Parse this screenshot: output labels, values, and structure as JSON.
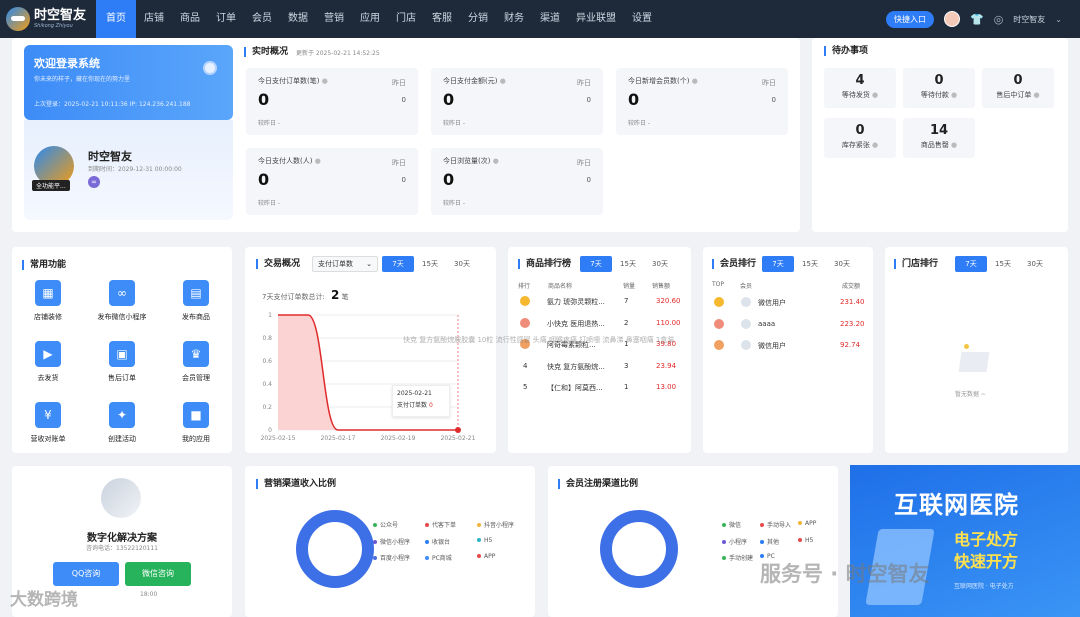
{
  "brand": {
    "name_cn": "时空智友",
    "name_en": "Shikong Zhiyou"
  },
  "nav": [
    "首页",
    "店铺",
    "商品",
    "订单",
    "会员",
    "数据",
    "营销",
    "应用",
    "门店",
    "客服",
    "分销",
    "财务",
    "渠道",
    "异业联盟",
    "设置"
  ],
  "nav_active": 0,
  "header": {
    "quick_entry": "快捷入口",
    "user": "时空智友",
    "accent": "#2e7cf6",
    "bar_color": "#1e2a3a"
  },
  "welcome": {
    "title": "欢迎登录系统",
    "subtitle": "你未来的样子，藏在你现在的努力里",
    "last_login": "上次登录：2025-02-21 10:11:36 IP: 124.236.241.188"
  },
  "shop": {
    "name": "时空智友",
    "tag": "全功能平...",
    "expire": "到期时间：2029-12-31 00:00:00"
  },
  "realtime": {
    "title": "实时概况",
    "updated": "更新于 2025-02-21 14:52:25",
    "cards": [
      {
        "label": "今日支付订单数(笔)",
        "value": "0",
        "yday_label": "昨日",
        "yday": "0",
        "cmp": "较昨日 -"
      },
      {
        "label": "今日支付金额(元)",
        "value": "0",
        "yday_label": "昨日",
        "yday": "0",
        "cmp": "较昨日 -"
      },
      {
        "label": "今日新增会员数(个)",
        "value": "0",
        "yday_label": "昨日",
        "yday": "0",
        "cmp": "较昨日 -"
      },
      {
        "label": "今日支付人数(人)",
        "value": "0",
        "yday_label": "昨日",
        "yday": "0",
        "cmp": "较昨日 -"
      },
      {
        "label": "今日浏览量(次)",
        "value": "0",
        "yday_label": "昨日",
        "yday": "0",
        "cmp": "较昨日 -"
      }
    ]
  },
  "todo": {
    "title": "待办事项",
    "items": [
      {
        "value": "4",
        "label": "等待发货"
      },
      {
        "value": "0",
        "label": "等待付款"
      },
      {
        "value": "0",
        "label": "售后中订单"
      },
      {
        "value": "0",
        "label": "库存紧张"
      },
      {
        "value": "14",
        "label": "商品售罄"
      }
    ]
  },
  "functions": {
    "title": "常用功能",
    "items": [
      {
        "label": "店铺装修",
        "icon": "brush-icon",
        "glyph": "▦"
      },
      {
        "label": "发布微信小程序",
        "icon": "mini-program-icon",
        "glyph": "∞"
      },
      {
        "label": "发布商品",
        "icon": "product-icon",
        "glyph": "▤"
      },
      {
        "label": "去发货",
        "icon": "truck-icon",
        "glyph": "▶"
      },
      {
        "label": "售后订单",
        "icon": "after-sale-icon",
        "glyph": "▣"
      },
      {
        "label": "会员管理",
        "icon": "crown-icon",
        "glyph": "♛"
      },
      {
        "label": "营收对账单",
        "icon": "yen-icon",
        "glyph": "¥"
      },
      {
        "label": "创建活动",
        "icon": "ticket-icon",
        "glyph": "✦"
      },
      {
        "label": "我的应用",
        "icon": "cube-icon",
        "glyph": "■"
      }
    ]
  },
  "trade": {
    "title": "交易概况",
    "select": "支付订单数",
    "tabs": [
      "7天",
      "15天",
      "30天"
    ],
    "summary_label": "7天支付订单数总计:",
    "summary_value": "2",
    "summary_unit": "笔",
    "tooltip_date": "2025-02-21",
    "tooltip_label": "支付订单数",
    "tooltip_value": "0"
  },
  "chart_data": {
    "type": "area",
    "x": [
      "2025-02-15",
      "2025-02-16",
      "2025-02-17",
      "2025-02-18",
      "2025-02-19",
      "2025-02-20",
      "2025-02-21"
    ],
    "xticks": [
      "2025-02-15",
      "2025-02-17",
      "2025-02-19",
      "2025-02-21"
    ],
    "yticks": [
      "1",
      "0.8",
      "0.6",
      "0.4",
      "0.2",
      "0"
    ],
    "series": [
      {
        "values": [
          1,
          1,
          0,
          0,
          0,
          0,
          0
        ]
      }
    ],
    "ylim": [
      0,
      1
    ],
    "color": "#e02b2b",
    "fill": "#fbd3d3"
  },
  "product_rank": {
    "title": "商品排行榜",
    "tabs": [
      "7天",
      "15天",
      "30天"
    ],
    "headers": [
      "排行",
      "商品名称",
      "销量",
      "销售额"
    ],
    "rows": [
      {
        "rank": "1",
        "name": "氨力 琥弥灵颗粒...",
        "qty": "7",
        "amount": "320.60"
      },
      {
        "rank": "2",
        "name": "小快克 医用退热...",
        "qty": "2",
        "amount": "110.00"
      },
      {
        "rank": "3",
        "name": "阿奇霉素颗粒...",
        "qty": "1",
        "amount": "39.80"
      },
      {
        "rank": "4",
        "name": "快克 复方氨酚烷...",
        "qty": "3",
        "amount": "23.94"
      },
      {
        "rank": "5",
        "name": "【仁和】阿莫西...",
        "qty": "1",
        "amount": "13.00"
      }
    ]
  },
  "member_rank": {
    "title": "会员排行",
    "tabs": [
      "7天",
      "15天",
      "30天"
    ],
    "headers": [
      "TOP",
      "会员",
      "成交额"
    ],
    "rows": [
      {
        "name": "微信用户",
        "amount": "231.40"
      },
      {
        "name": "aaaa",
        "amount": "223.20"
      },
      {
        "name": "微信用户",
        "amount": "92.74"
      }
    ]
  },
  "store_rank": {
    "title": "门店排行",
    "tabs": [
      "7天",
      "15天",
      "30天"
    ],
    "empty": "暂无数据 ~"
  },
  "overlay_text": "快克 复方氨酚烷胺胶囊 10粒 流行性感冒 头痛 咽喉疼痛 打喷嚏 流鼻涕 鼻塞咽痛 1盒装",
  "solution": {
    "title": "数字化解决方案",
    "phone": "咨询电话：13522120111",
    "qq": "QQ咨询",
    "wechat": "微信咨询",
    "hours": "18:00"
  },
  "marketing": {
    "title": "营销渠道收入比例",
    "legend": [
      {
        "name": "公众号",
        "color": "#3ab45a"
      },
      {
        "name": "代客下单",
        "color": "#e64a4a"
      },
      {
        "name": "抖音小程序",
        "color": "#f2b43a"
      },
      {
        "name": "微信小程序",
        "color": "#6a5ad8"
      },
      {
        "name": "收银台",
        "color": "#2e7cf6"
      },
      {
        "name": "H5",
        "color": "#2fb3c9"
      },
      {
        "name": "百度小程序",
        "color": "#4a6de0"
      },
      {
        "name": "PC商城",
        "color": "#3d8cf7"
      },
      {
        "name": "APP",
        "color": "#e64a4a"
      }
    ]
  },
  "register": {
    "title": "会员注册渠道比例",
    "legend": [
      {
        "name": "微信",
        "color": "#3ab45a"
      },
      {
        "name": "手动导入",
        "color": "#e64a4a"
      },
      {
        "name": "APP",
        "color": "#f2b43a"
      },
      {
        "name": "小程序",
        "color": "#6a5ad8"
      },
      {
        "name": "其他",
        "color": "#2e7cf6"
      },
      {
        "name": "H5",
        "color": "#e64a4a"
      },
      {
        "name": "手动创建",
        "color": "#3ab45a"
      },
      {
        "name": "PC",
        "color": "#2e7cf6"
      }
    ]
  },
  "ad": {
    "title": "互联网医院",
    "line1": "电子处方",
    "line2": "快速开方",
    "note": "互联网医院 · 电子处方"
  },
  "watermarks": {
    "left": "大数跨境",
    "right": "服务号 · 时空智友"
  }
}
